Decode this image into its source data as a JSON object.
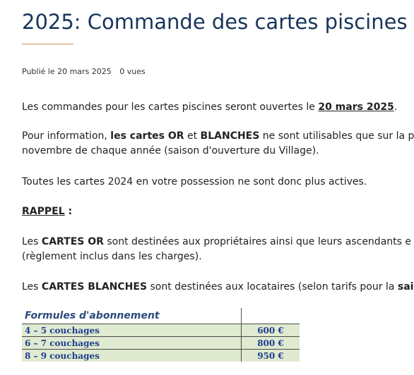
{
  "article": {
    "title": "2025: Commande des cartes piscines",
    "meta": {
      "published": "Publié le 20 mars 2025",
      "views": "0 vues"
    },
    "p1": {
      "text": "Les commandes pour les cartes piscines seront ouvertes le ",
      "date": "20 mars 2025",
      "end": "."
    },
    "p2": {
      "pre": "Pour information, ",
      "or": "les cartes OR",
      "mid": " et ",
      "blanches": "BLANCHES",
      "post": " ne sont utilisables que sur la p",
      "line2": "novembre de chaque année (saison d'ouverture du Village)."
    },
    "p3": "Toutes les cartes 2024 en votre possession ne sont donc plus actives.",
    "rappel": "RAPPEL",
    "rappel_colon": " :",
    "p5": {
      "pre": "Les ",
      "bold": "CARTES OR",
      "post": " sont destinées aux propriétaires ainsi que leurs ascendants e",
      "line2": "(règlement inclus dans les charges)."
    },
    "p6": {
      "pre": "Les ",
      "bold": "CARTES BLANCHES",
      "post": " sont destinées aux locataires (selon tarifs pour la ",
      "bold2": "sai"
    }
  },
  "tarifs": {
    "header": "Formules d'abonnement",
    "rows": [
      {
        "label": "4 – 5 couchages",
        "price": "600 €"
      },
      {
        "label": "6 – 7 couchages",
        "price": "800 €"
      },
      {
        "label": "8 – 9 couchages",
        "price": "950 €"
      }
    ]
  }
}
